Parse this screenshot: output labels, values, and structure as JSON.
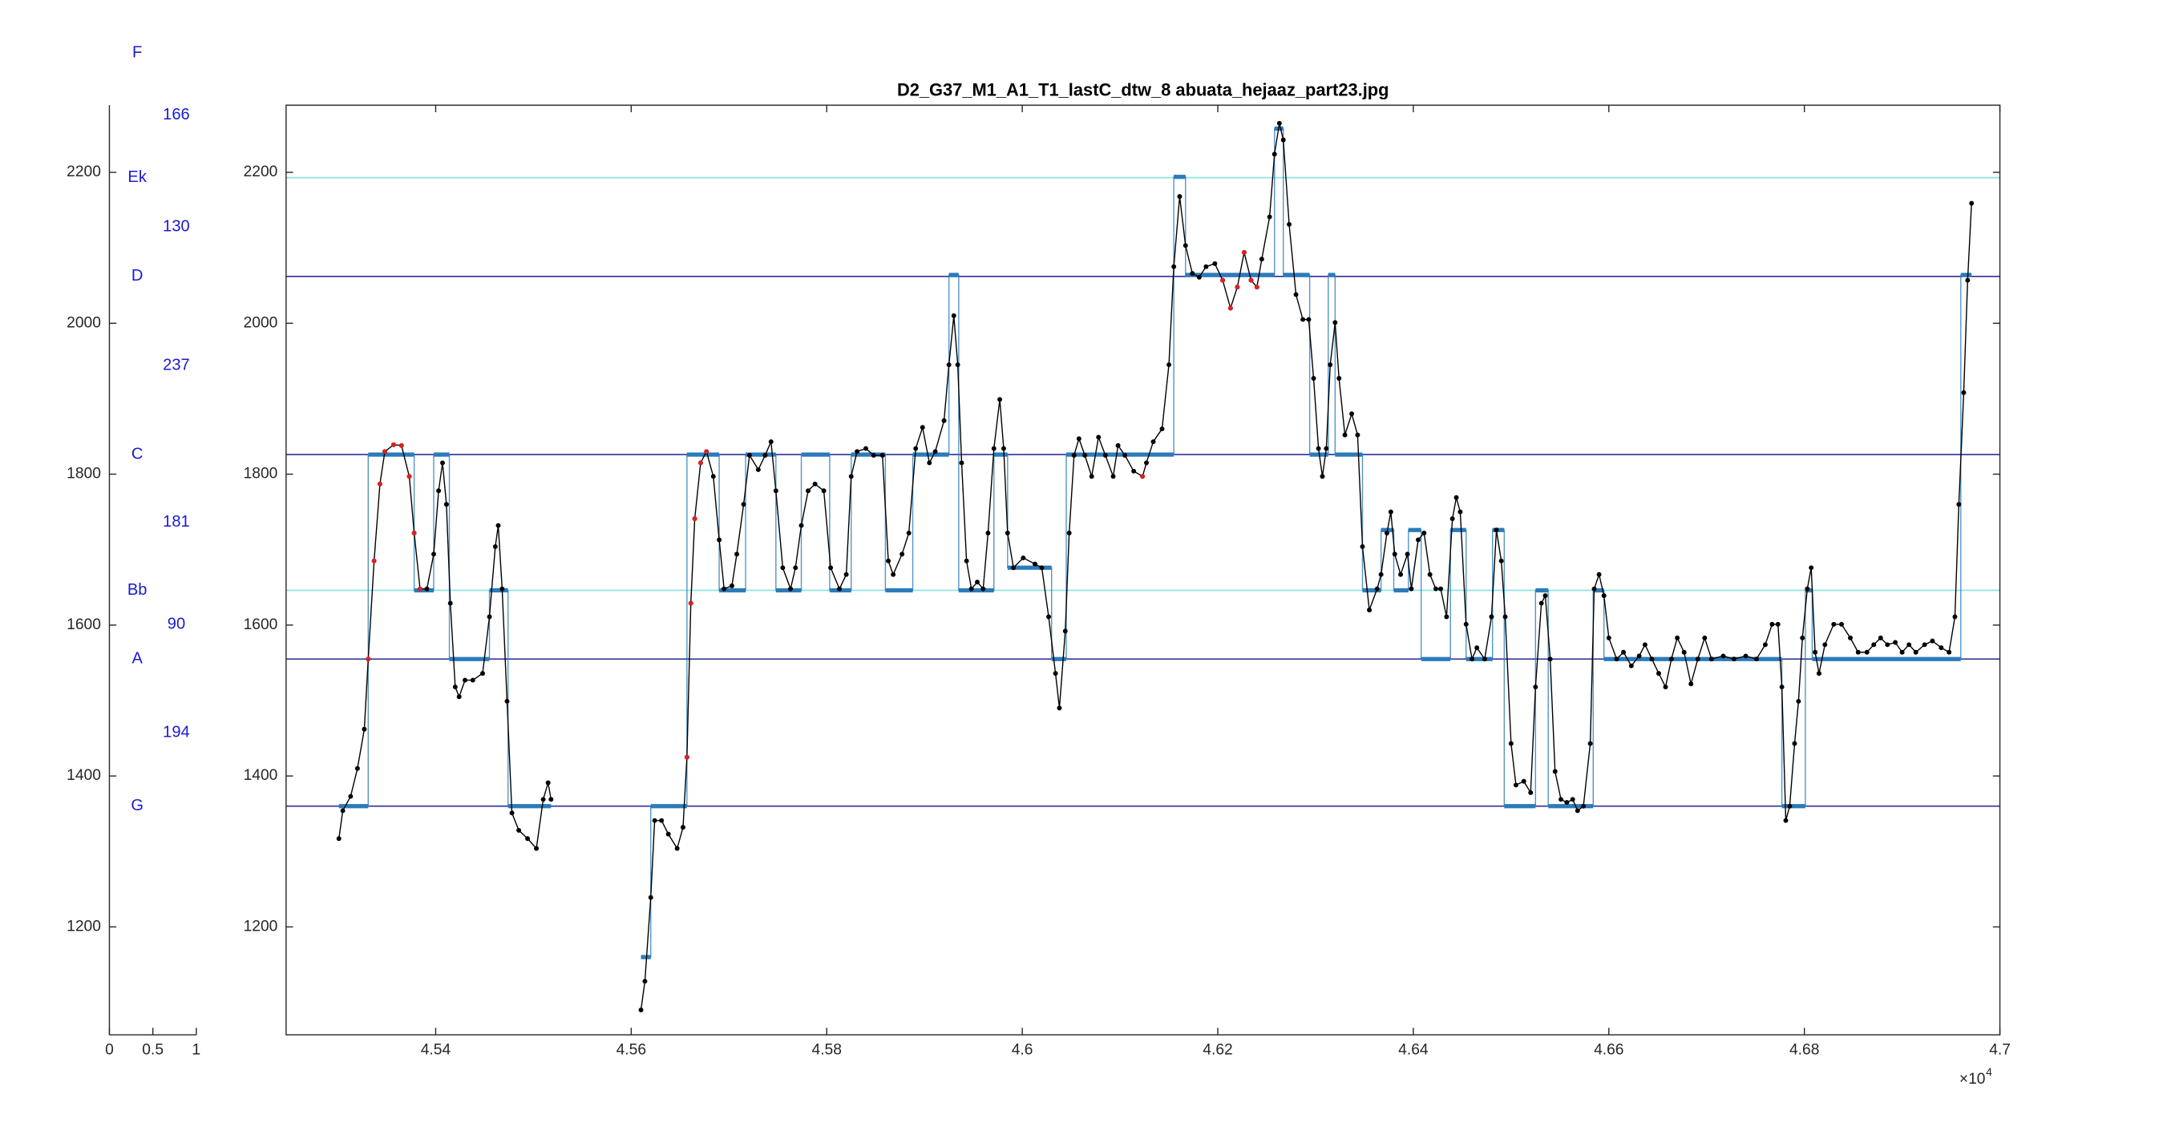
{
  "chart_data": [
    {
      "type": "scale",
      "xlim": [
        0,
        1
      ],
      "xticks": [
        0,
        0.5,
        1
      ],
      "ylim": [
        1057,
        2289
      ],
      "yticks": [
        1200,
        1400,
        1600,
        1800,
        2000,
        2200
      ],
      "notes": [
        {
          "label": "F",
          "value": 2358
        },
        {
          "label": "Ek",
          "value": 2193,
          "color": "#8fe3e6"
        },
        {
          "label": "D",
          "value": 2062,
          "color": "#3d3d9e"
        },
        {
          "label": "C",
          "value": 1826,
          "color": "#3d3d9e"
        },
        {
          "label": "Bb",
          "value": 1646,
          "color": "#8fe3e6"
        },
        {
          "label": "A",
          "value": 1555,
          "color": "#3d3d9e"
        },
        {
          "label": "G",
          "value": 1360,
          "color": "#3d3d9e"
        }
      ],
      "intervals": [
        166,
        130,
        237,
        181,
        90,
        194
      ]
    },
    {
      "type": "line",
      "title": "D2_G37_M1_A1_T1_lastC_dtw_8 abuata_hejaaz_part23.jpg",
      "xlim": [
        45247,
        47000
      ],
      "xticks": [
        {
          "value": 45400,
          "label": "4.54"
        },
        {
          "value": 45600,
          "label": "4.56"
        },
        {
          "value": 45800,
          "label": "4.58"
        },
        {
          "value": 46000,
          "label": "4.6"
        },
        {
          "value": 46200,
          "label": "4.62"
        },
        {
          "value": 46400,
          "label": "4.64"
        },
        {
          "value": 46600,
          "label": "4.66"
        },
        {
          "value": 46800,
          "label": "4.68"
        },
        {
          "value": 47000,
          "label": "4.7"
        }
      ],
      "x_exponent": {
        "base": "×10",
        "power": "4"
      },
      "ylim": [
        1057,
        2289
      ],
      "yticks": [
        1200,
        1400,
        1600,
        1800,
        2000,
        2200
      ],
      "series": [
        {
          "style": "line",
          "color": "#000000",
          "x": [
            45301,
            45305,
            45313,
            45320,
            45327,
            45331,
            45337,
            45343,
            45348,
            45357,
            45365,
            45373,
            45378,
            45384,
            45391,
            45398,
            45403,
            45407,
            45411,
            45415,
            45420,
            45424,
            45430,
            45438,
            45448,
            45455,
            45461,
            45464,
            45468,
            45473,
            45478,
            45485,
            45494,
            45503,
            45510,
            45515,
            45518
          ],
          "values": [
            1317,
            1354,
            1373,
            1410,
            1462,
            1555,
            1685,
            1787,
            1830,
            1839,
            1838,
            1797,
            1722,
            1648,
            1648,
            1694,
            1778,
            1815,
            1760,
            1629,
            1518,
            1505,
            1527,
            1527,
            1536,
            1611,
            1704,
            1732,
            1648,
            1499,
            1351,
            1328,
            1317,
            1304,
            1369,
            1391,
            1369
          ]
        },
        {
          "style": "line",
          "color": "#000000",
          "x": [
            45610,
            45614,
            45620,
            45624,
            45631,
            45638,
            45647,
            45653,
            45657,
            45661,
            45665,
            45671,
            45677,
            45684,
            45690,
            45695,
            45703,
            45708,
            45715,
            45721,
            45730,
            45737,
            45743,
            45748,
            45755,
            45763,
            45768,
            45774,
            45781,
            45788,
            45797,
            45804,
            45813,
            45820,
            45825,
            45831,
            45840,
            45848,
            45857,
            45863,
            45868,
            45877,
            45884,
            45891,
            45898,
            45905,
            45911,
            45920,
            45925,
            45930,
            45934,
            45938,
            45943,
            45948,
            45954,
            45960,
            45965,
            45971,
            45977,
            45981,
            45985,
            45991,
            46001,
            46013,
            46020,
            46027,
            46034,
            46038,
            46044,
            46048,
            46053,
            46058,
            46064,
            46071,
            46078,
            46085,
            46093,
            46098,
            46105,
            46114,
            46123,
            46127,
            46134,
            46143,
            46150,
            46155,
            46161,
            46167,
            46174,
            46181,
            46188,
            46197,
            46205,
            46213,
            46220,
            46227,
            46234,
            46240,
            46245,
            46253,
            46258,
            46263,
            46267,
            46273,
            46280,
            46287,
            46293,
            46298,
            46303,
            46307,
            46311,
            46315,
            46320,
            46324,
            46330,
            46337,
            46343,
            46348,
            46355,
            46363,
            46367,
            46373,
            46377,
            46381,
            46387,
            46394,
            46398,
            46405,
            46411,
            46417,
            46423,
            46428,
            46434,
            46440,
            46444,
            46448,
            46454,
            46460,
            46465,
            46473,
            46480,
            46485,
            46490,
            46494,
            46500,
            46505,
            46513,
            46520,
            46525,
            46531,
            46535,
            46540,
            46545,
            46551,
            46557,
            46563,
            46568,
            46574,
            46581,
            46585,
            46590,
            46595,
            46600,
            46608,
            46615,
            46623,
            46631,
            46637,
            46644,
            46651,
            46658,
            46664,
            46670,
            46677,
            46684,
            46691,
            46698,
            46705,
            46717,
            46728,
            46740,
            46751,
            46760,
            46767,
            46773,
            46777,
            46781,
            46785,
            46790,
            46794,
            46798,
            46803,
            46807,
            46811,
            46815,
            46821,
            46830,
            46838,
            46847,
            46855,
            46864,
            46871,
            46878,
            46885,
            46893,
            46900,
            46907,
            46914,
            46923,
            46931,
            46940,
            46948,
            46954,
            46958,
            46963,
            46967,
            46971
          ],
          "values": [
            1090,
            1128,
            1239,
            1341,
            1341,
            1323,
            1304,
            1332,
            1425,
            1629,
            1741,
            1815,
            1830,
            1797,
            1713,
            1648,
            1652,
            1694,
            1760,
            1825,
            1806,
            1825,
            1843,
            1778,
            1676,
            1648,
            1676,
            1732,
            1778,
            1787,
            1778,
            1676,
            1648,
            1667,
            1797,
            1830,
            1834,
            1825,
            1825,
            1685,
            1667,
            1694,
            1722,
            1834,
            1862,
            1815,
            1830,
            1871,
            1945,
            2010,
            1945,
            1815,
            1685,
            1648,
            1657,
            1648,
            1722,
            1834,
            1899,
            1834,
            1722,
            1676,
            1689,
            1681,
            1676,
            1611,
            1536,
            1490,
            1592,
            1722,
            1825,
            1847,
            1825,
            1797,
            1849,
            1825,
            1797,
            1838,
            1825,
            1804,
            1797,
            1815,
            1843,
            1860,
            1945,
            2075,
            2168,
            2103,
            2066,
            2061,
            2075,
            2079,
            2057,
            2020,
            2048,
            2094,
            2057,
            2048,
            2085,
            2141,
            2224,
            2265,
            2243,
            2131,
            2038,
            2005,
            2005,
            1927,
            1834,
            1797,
            1834,
            1945,
            2001,
            1927,
            1852,
            1880,
            1852,
            1704,
            1620,
            1648,
            1667,
            1722,
            1750,
            1694,
            1667,
            1694,
            1648,
            1713,
            1722,
            1667,
            1648,
            1648,
            1611,
            1741,
            1769,
            1750,
            1601,
            1555,
            1570,
            1555,
            1611,
            1726,
            1685,
            1611,
            1443,
            1388,
            1393,
            1378,
            1518,
            1629,
            1639,
            1555,
            1406,
            1369,
            1365,
            1369,
            1354,
            1360,
            1443,
            1648,
            1667,
            1639,
            1583,
            1555,
            1564,
            1546,
            1559,
            1574,
            1555,
            1536,
            1518,
            1555,
            1583,
            1564,
            1522,
            1555,
            1583,
            1555,
            1559,
            1555,
            1559,
            1555,
            1574,
            1601,
            1601,
            1518,
            1341,
            1360,
            1443,
            1499,
            1583,
            1648,
            1676,
            1564,
            1536,
            1574,
            1601,
            1601,
            1583,
            1564,
            1564,
            1574,
            1583,
            1574,
            1577,
            1564,
            1574,
            1564,
            1574,
            1579,
            1570,
            1564,
            1611,
            1760,
            1908,
            2057,
            2159
          ]
        },
        {
          "style": "step",
          "color": "#2b7bba",
          "x": [
            45301,
            45331,
            45378,
            45398,
            45414,
            45455,
            45474,
            45518
          ],
          "values": [
            1360,
            1826,
            1646,
            1826,
            1555,
            1646,
            1360,
            1360
          ]
        },
        {
          "style": "step",
          "color": "#2b7bba",
          "x": [
            45610,
            45620,
            45657,
            45690,
            45717,
            45748,
            45774,
            45803,
            45825,
            45860,
            45888,
            45925,
            45935,
            45971,
            45985,
            46030,
            46045,
            46155,
            46167,
            46258,
            46267,
            46294,
            46313,
            46320,
            46348,
            46367,
            46380,
            46395,
            46408,
            46438,
            46454,
            46481,
            46493,
            46525,
            46538,
            46584,
            46595,
            46777,
            46801,
            46808,
            46960,
            46971
          ],
          "values": [
            1160,
            1360,
            1826,
            1646,
            1826,
            1646,
            1826,
            1646,
            1826,
            1646,
            1826,
            2064,
            1646,
            1826,
            1676,
            1555,
            1826,
            2194,
            2064,
            2258,
            2064,
            1826,
            2064,
            1826,
            1646,
            1726,
            1646,
            1726,
            1555,
            1726,
            1555,
            1726,
            1360,
            1646,
            1360,
            1646,
            1555,
            1360,
            1646,
            1555,
            2064,
            2064
          ]
        },
        {
          "style": "markers",
          "color": "#e02020",
          "x": [
            45331,
            45337,
            45343,
            45348,
            45357,
            45365,
            45373,
            45378,
            45384,
            45657,
            45661,
            45665,
            45671,
            45677,
            46123,
            46205,
            46213,
            46220,
            46227,
            46234,
            46240
          ],
          "values": [
            1555,
            1685,
            1787,
            1830,
            1839,
            1838,
            1797,
            1722,
            1648,
            1425,
            1629,
            1741,
            1815,
            1830,
            1797,
            2057,
            2020,
            2048,
            2094,
            2057,
            2048
          ]
        }
      ]
    }
  ]
}
